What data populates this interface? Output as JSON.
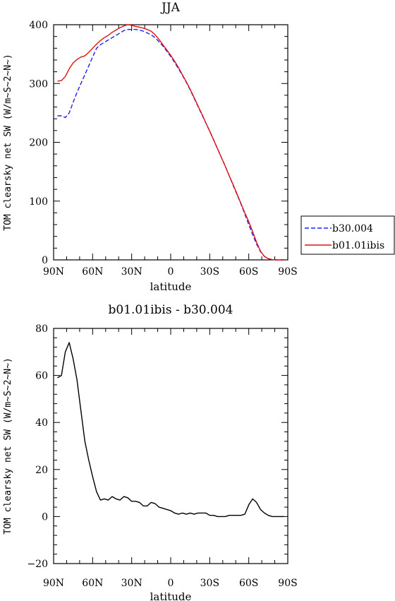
{
  "chart_data": [
    {
      "type": "line",
      "title": "JJA",
      "xlabel": "latitude",
      "ylabel": "TOM clearsky net SW (W/m~S~2~N~)",
      "xlim": [
        90,
        -90
      ],
      "ylim": [
        0,
        400
      ],
      "x_ticks": [
        "90N",
        "60N",
        "30N",
        "0",
        "30S",
        "60S",
        "90S"
      ],
      "y_ticks": [
        "0",
        "100",
        "200",
        "300",
        "400"
      ],
      "legend_position": "right",
      "x": [
        87,
        84,
        81,
        78,
        75,
        72,
        69,
        66,
        63,
        60,
        57,
        54,
        51,
        48,
        45,
        42,
        39,
        36,
        33,
        30,
        27,
        24,
        21,
        18,
        15,
        12,
        9,
        6,
        3,
        0,
        -3,
        -6,
        -9,
        -12,
        -15,
        -18,
        -21,
        -24,
        -27,
        -30,
        -33,
        -36,
        -39,
        -42,
        -45,
        -48,
        -51,
        -54,
        -57,
        -60,
        -63,
        -66,
        -69,
        -72,
        -75,
        -78,
        -81,
        -84,
        -87
      ],
      "series": [
        {
          "name": "b30.004",
          "color": "#2020ee",
          "dash": "dashed",
          "values": [
            245,
            245,
            242,
            250,
            268,
            285,
            300,
            315,
            330,
            345,
            360,
            366,
            370,
            374,
            378,
            382,
            386,
            390,
            392,
            392,
            392,
            391,
            389,
            386,
            383,
            378,
            371,
            364,
            355,
            346,
            336,
            325,
            314,
            302,
            289,
            275,
            261,
            247,
            233,
            219,
            204,
            189,
            174,
            159,
            143,
            127,
            111,
            95,
            78,
            60,
            43,
            27,
            14,
            6,
            2,
            0.5,
            0,
            0,
            0
          ]
        },
        {
          "name": "b01.01ibis",
          "color": "#e01010",
          "dash": "solid",
          "values": [
            304,
            305,
            312,
            325,
            335,
            341,
            345,
            347,
            353,
            360,
            367,
            373,
            378,
            382,
            387,
            391,
            395,
            398,
            400,
            399,
            397,
            396,
            394,
            392,
            389,
            383,
            375,
            366,
            357,
            348,
            338,
            327,
            315,
            303,
            290,
            276,
            262,
            248,
            233,
            219,
            204,
            189,
            174,
            159,
            143,
            128,
            112,
            96,
            80,
            65,
            48,
            30,
            15,
            6,
            2,
            0.5,
            0,
            0,
            0
          ]
        }
      ]
    },
    {
      "type": "line",
      "title": "b01.01ibis - b30.004",
      "xlabel": "latitude",
      "ylabel": "TOM clearsky net SW (W/m~S~2~N~)",
      "xlim": [
        90,
        -90
      ],
      "ylim": [
        -20,
        80
      ],
      "x_ticks": [
        "90N",
        "60N",
        "30N",
        "0",
        "30S",
        "60S",
        "90S"
      ],
      "y_ticks": [
        "−20",
        "0",
        "20",
        "40",
        "60",
        "80"
      ],
      "x": [
        87,
        84,
        81,
        78,
        75,
        72,
        69,
        66,
        63,
        60,
        57,
        54,
        51,
        48,
        45,
        42,
        39,
        36,
        33,
        30,
        27,
        24,
        21,
        18,
        15,
        12,
        9,
        6,
        3,
        0,
        -3,
        -6,
        -9,
        -12,
        -15,
        -18,
        -21,
        -24,
        -27,
        -30,
        -33,
        -36,
        -39,
        -42,
        -45,
        -48,
        -51,
        -54,
        -57,
        -60,
        -63,
        -66,
        -69,
        -72,
        -75,
        -78,
        -81,
        -84,
        -87
      ],
      "series": [
        {
          "color": "#000000",
          "dash": "solid",
          "values": [
            59,
            60,
            70,
            74,
            67,
            58,
            45,
            32,
            24,
            17,
            10.5,
            7,
            7.5,
            7,
            8.5,
            7.5,
            7,
            8.5,
            8,
            6.5,
            6.5,
            6,
            4.5,
            4.5,
            6,
            5.5,
            4,
            3.5,
            3,
            2.5,
            1.5,
            1,
            1.5,
            1,
            1.5,
            1,
            1.5,
            1.5,
            1.5,
            0.5,
            0.5,
            0,
            0,
            0,
            0.5,
            0.5,
            0.5,
            0.5,
            1,
            5,
            7.5,
            6,
            3,
            1.5,
            0.5,
            0,
            0,
            0,
            0
          ]
        }
      ]
    }
  ],
  "legend": {
    "items": [
      {
        "label": "b30.004",
        "color": "#2020ee",
        "dash": "dashed"
      },
      {
        "label": "b01.01ibis",
        "color": "#e01010",
        "dash": "solid"
      }
    ]
  }
}
